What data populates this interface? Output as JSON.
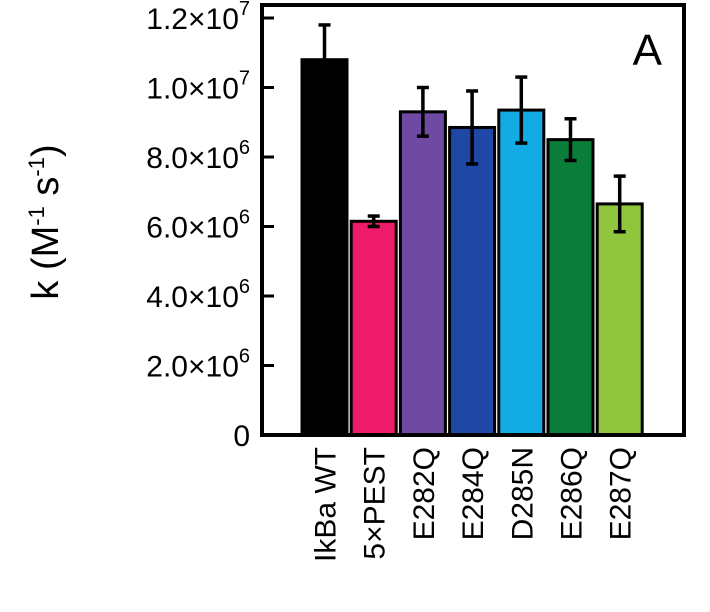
{
  "chart_data": {
    "type": "bar",
    "panel_label": "A",
    "ylabel": {
      "prefix": "k (M",
      "exp1": "-1",
      "mid": " s",
      "exp2": "-1",
      "suffix": ")"
    },
    "ylim": [
      0,
      12000000
    ],
    "yticks": [
      {
        "value": 0,
        "mantissa": "0",
        "exp": ""
      },
      {
        "value": 2000000,
        "mantissa": "2.0×10",
        "exp": "6"
      },
      {
        "value": 4000000,
        "mantissa": "4.0×10",
        "exp": "6"
      },
      {
        "value": 6000000,
        "mantissa": "6.0×10",
        "exp": "6"
      },
      {
        "value": 8000000,
        "mantissa": "8.0×10",
        "exp": "6"
      },
      {
        "value": 10000000,
        "mantissa": "1.0×10",
        "exp": "7"
      },
      {
        "value": 12000000,
        "mantissa": "1.2×10",
        "exp": "7"
      }
    ],
    "categories": [
      "IkBa WT",
      "5×PEST",
      "E282Q",
      "E284Q",
      "D285N",
      "E286Q",
      "E287Q"
    ],
    "values": [
      10800000,
      6150000,
      9300000,
      8850000,
      9350000,
      8500000,
      6650000
    ],
    "errors": [
      1000000,
      150000,
      700000,
      1050000,
      950000,
      600000,
      800000
    ],
    "colors": [
      "#000000",
      "#ee1a6a",
      "#6f4aa2",
      "#1f47a5",
      "#12abe3",
      "#0a7d3a",
      "#8fc63e"
    ],
    "grid": false,
    "legend": "none"
  }
}
